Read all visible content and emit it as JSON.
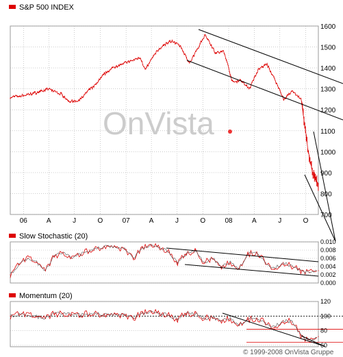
{
  "colors": {
    "price": "#dd0000",
    "channel": "#000000",
    "grid": "#aaaaaa",
    "reference": "#dd0000",
    "watermark": "#cccccc",
    "watermark_dot": "#ee3333"
  },
  "watermark": "OnVista",
  "copyright": "© 1999-2008 OnVista Gruppe",
  "chart_data": [
    {
      "type": "line",
      "title": "S&P 500 INDEX",
      "x_ticks": [
        "06",
        "A",
        "J",
        "O",
        "07",
        "A",
        "J",
        "O",
        "08",
        "A",
        "J",
        "O"
      ],
      "x_tick_dates": [
        "2006-01-01",
        "2006-04-01",
        "2006-07-01",
        "2006-10-01",
        "2007-01-01",
        "2007-04-01",
        "2007-07-01",
        "2007-10-01",
        "2008-01-01",
        "2008-04-01",
        "2008-07-01",
        "2008-10-01"
      ],
      "x_range": [
        "2005-11-15",
        "2008-11-15"
      ],
      "ylim": [
        700,
        1600
      ],
      "y_ticks": [
        700,
        800,
        900,
        1000,
        1100,
        1200,
        1300,
        1400,
        1500,
        1600
      ],
      "grid": true,
      "series": [
        {
          "x": [
            "2005-11-15",
            "2006-01-01",
            "2006-02-15",
            "2006-04-01",
            "2006-05-15",
            "2006-06-15",
            "2006-07-15",
            "2006-08-15",
            "2006-09-15",
            "2006-10-15",
            "2006-11-15",
            "2006-12-15",
            "2007-01-15",
            "2007-02-20",
            "2007-03-10",
            "2007-04-15",
            "2007-05-15",
            "2007-06-15",
            "2007-07-15",
            "2007-08-15",
            "2007-09-15",
            "2007-10-10",
            "2007-11-15",
            "2007-12-15",
            "2008-01-15",
            "2008-02-15",
            "2008-03-15",
            "2008-04-15",
            "2008-05-15",
            "2008-06-15",
            "2008-07-15",
            "2008-08-15",
            "2008-09-15",
            "2008-10-10",
            "2008-10-25",
            "2008-11-15"
          ],
          "y": [
            1260,
            1268,
            1282,
            1300,
            1275,
            1240,
            1240,
            1285,
            1320,
            1370,
            1400,
            1420,
            1430,
            1450,
            1390,
            1470,
            1510,
            1530,
            1500,
            1420,
            1500,
            1560,
            1470,
            1480,
            1330,
            1340,
            1300,
            1390,
            1420,
            1340,
            1250,
            1290,
            1250,
            1000,
            900,
            840
          ]
        }
      ],
      "annotations": "downward trend channel lines"
    },
    {
      "type": "line",
      "title": "Slow Stochastic (20)",
      "ylim": [
        0,
        0.01
      ],
      "y_ticks": [
        "0.000",
        "0.002",
        "0.004",
        "0.006",
        "0.008",
        "0.010"
      ],
      "grid": true,
      "series": [
        {
          "x": [
            0,
            1,
            2,
            3,
            4,
            5,
            6,
            7,
            8,
            9,
            10,
            11,
            12,
            13,
            14,
            15,
            16,
            17,
            18,
            19,
            20,
            21,
            22,
            23,
            24,
            25,
            26,
            27,
            28,
            29,
            30,
            31,
            32,
            33,
            34,
            35
          ],
          "y": [
            0.002,
            0.0045,
            0.006,
            0.005,
            0.003,
            0.0065,
            0.0075,
            0.006,
            0.007,
            0.008,
            0.0085,
            0.009,
            0.0088,
            0.0082,
            0.006,
            0.0085,
            0.009,
            0.0087,
            0.0075,
            0.005,
            0.007,
            0.008,
            0.005,
            0.006,
            0.004,
            0.005,
            0.0035,
            0.007,
            0.0075,
            0.005,
            0.0035,
            0.005,
            0.004,
            0.003,
            0.0025,
            0.003
          ]
        }
      ],
      "annotations": "downward trend channel lines"
    },
    {
      "type": "line",
      "title": "Momentum (20)",
      "ylim": [
        58,
        120
      ],
      "y_ticks": [
        60,
        80,
        100,
        120
      ],
      "reference_lines": [
        100,
        82,
        64
      ],
      "grid": true,
      "series": [
        {
          "x": [
            0,
            1,
            2,
            3,
            4,
            5,
            6,
            7,
            8,
            9,
            10,
            11,
            12,
            13,
            14,
            15,
            16,
            17,
            18,
            19,
            20,
            21,
            22,
            23,
            24,
            25,
            26,
            27,
            28,
            29,
            30,
            31,
            32,
            33,
            34,
            35
          ],
          "y": [
            100,
            102,
            101,
            99,
            97,
            103,
            104,
            102,
            101,
            104,
            103,
            102,
            103,
            101,
            97,
            104,
            105,
            104,
            101,
            96,
            103,
            104,
            97,
            98,
            94,
            96,
            88,
            95,
            97,
            91,
            85,
            94,
            92,
            74,
            64,
            72
          ]
        }
      ],
      "annotations": "downward trend lines"
    }
  ]
}
